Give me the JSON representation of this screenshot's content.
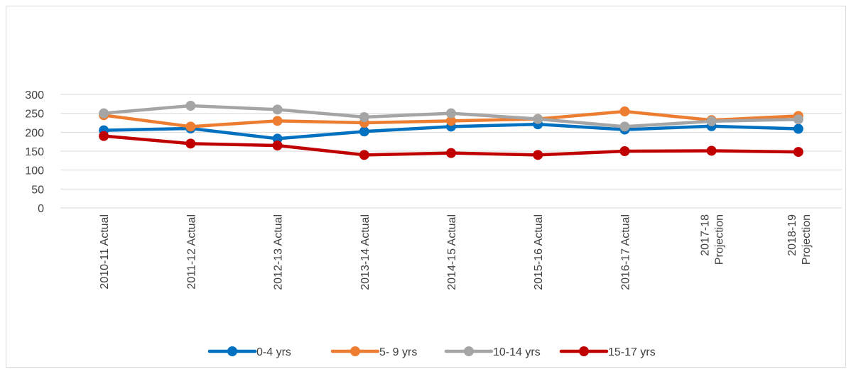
{
  "chart_data": {
    "type": "line",
    "title": "",
    "xlabel": "",
    "ylabel": "",
    "ylim": [
      0,
      300
    ],
    "yticks": [
      0,
      50,
      100,
      150,
      200,
      250,
      300
    ],
    "grid": true,
    "legend_position": "bottom",
    "categories": [
      [
        "2010-11 Actual"
      ],
      [
        "2011-12 Actual"
      ],
      [
        "2012-13 Actual"
      ],
      [
        "2013-14 Actual"
      ],
      [
        "2014-15 Actual"
      ],
      [
        "2015-16 Actual"
      ],
      [
        "2016-17 Actual"
      ],
      [
        "2017-18",
        "Projection"
      ],
      [
        "2018-19",
        "Projection"
      ]
    ],
    "series": [
      {
        "name": "0-4 yrs",
        "color": "#0070c0",
        "values": [
          205,
          210,
          183,
          202,
          215,
          221,
          207,
          216,
          209
        ]
      },
      {
        "name": "5- 9 yrs",
        "color": "#ed7d31",
        "values": [
          245,
          215,
          230,
          225,
          230,
          235,
          255,
          232,
          243
        ]
      },
      {
        "name": "10-14 yrs",
        "color": "#a5a5a5",
        "values": [
          250,
          270,
          260,
          240,
          250,
          235,
          215,
          229,
          234
        ]
      },
      {
        "name": "15-17 yrs",
        "color": "#c00000",
        "values": [
          190,
          170,
          165,
          140,
          145,
          140,
          150,
          151,
          148
        ]
      }
    ]
  }
}
